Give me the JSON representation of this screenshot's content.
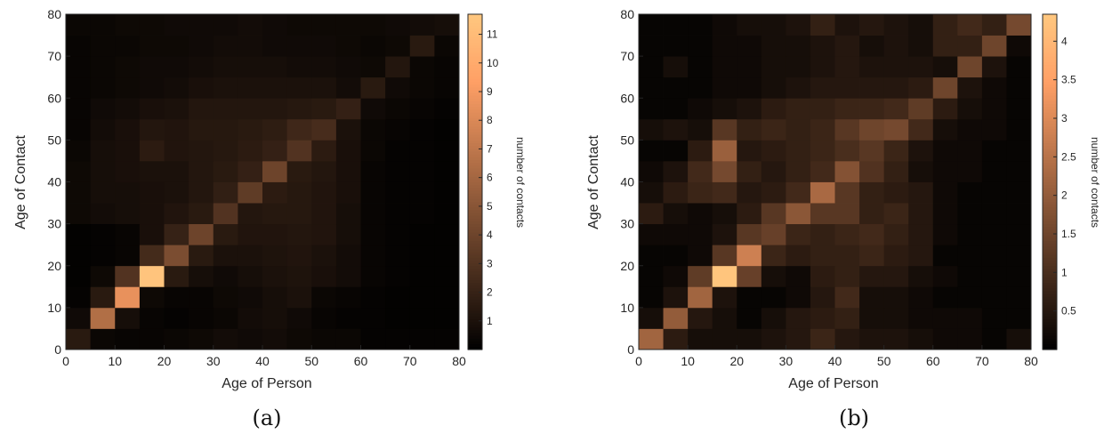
{
  "chart_data": [
    {
      "type": "heatmap",
      "panel_label": "(a)",
      "xlabel": "Age of Person",
      "ylabel": "Age of Contact",
      "colorbar_label": "number of contacts",
      "colormap": "copper",
      "xlim": [
        0,
        80
      ],
      "ylim": [
        0,
        80
      ],
      "bin_width": 5,
      "x_ticks": [
        0,
        10,
        20,
        30,
        40,
        50,
        60,
        70,
        80
      ],
      "y_ticks": [
        0,
        10,
        20,
        30,
        40,
        50,
        60,
        70,
        80
      ],
      "clim": [
        0,
        11.7
      ],
      "colorbar_ticks": [
        1,
        2,
        3,
        4,
        5,
        6,
        7,
        8,
        9,
        10,
        11
      ],
      "grid_note": "rows from age of contact 0-5 (row 0) to 75-80 (row 15); columns from age of person 0-5 to 75-80",
      "z": [
        [
          1.5,
          0.4,
          0.3,
          0.3,
          0.4,
          0.5,
          0.7,
          0.6,
          0.7,
          0.5,
          0.4,
          0.4,
          0.2,
          0.2,
          0.2,
          0.2
        ],
        [
          0.6,
          6.5,
          0.8,
          0.3,
          0.2,
          0.3,
          0.4,
          0.7,
          0.8,
          0.6,
          0.3,
          0.2,
          0.2,
          0.1,
          0.1,
          0.1
        ],
        [
          0.2,
          1.5,
          8.5,
          0.5,
          0.3,
          0.3,
          0.5,
          0.6,
          0.8,
          1.0,
          0.4,
          0.3,
          0.2,
          0.1,
          0.1,
          0.1
        ],
        [
          0.1,
          0.5,
          3.0,
          11.5,
          1.5,
          0.8,
          0.6,
          0.8,
          1.0,
          1.1,
          0.9,
          0.7,
          0.3,
          0.2,
          0.1,
          0.1
        ],
        [
          0.1,
          0.2,
          0.3,
          2.5,
          4.5,
          1.5,
          1.0,
          1.0,
          1.1,
          1.2,
          1.0,
          0.7,
          0.3,
          0.2,
          0.1,
          0.1
        ],
        [
          0.1,
          0.2,
          0.3,
          0.9,
          2.0,
          4.0,
          1.5,
          1.2,
          1.2,
          1.3,
          1.2,
          0.8,
          0.3,
          0.2,
          0.1,
          0.1
        ],
        [
          0.5,
          0.7,
          0.8,
          0.9,
          1.2,
          1.5,
          3.0,
          1.3,
          1.4,
          1.4,
          1.2,
          0.8,
          0.3,
          0.2,
          0.2,
          0.1
        ],
        [
          0.5,
          0.8,
          0.8,
          0.9,
          1.0,
          1.3,
          1.8,
          3.5,
          1.6,
          1.4,
          1.2,
          0.9,
          0.3,
          0.2,
          0.2,
          0.1
        ],
        [
          0.5,
          0.8,
          0.9,
          1.0,
          1.0,
          1.3,
          1.5,
          1.9,
          4.0,
          1.5,
          1.3,
          0.9,
          0.3,
          0.2,
          0.2,
          0.1
        ],
        [
          0.4,
          0.8,
          0.9,
          1.6,
          1.2,
          1.3,
          1.4,
          1.6,
          1.9,
          3.0,
          1.6,
          0.9,
          0.4,
          0.2,
          0.2,
          0.1
        ],
        [
          0.3,
          0.7,
          0.9,
          1.3,
          1.2,
          1.4,
          1.4,
          1.5,
          1.7,
          2.3,
          2.6,
          1.0,
          0.4,
          0.3,
          0.2,
          0.1
        ],
        [
          0.3,
          0.6,
          0.7,
          0.9,
          1.0,
          1.3,
          1.3,
          1.3,
          1.3,
          1.4,
          1.5,
          1.9,
          0.6,
          0.4,
          0.3,
          0.2
        ],
        [
          0.3,
          0.4,
          0.5,
          0.6,
          0.7,
          0.9,
          1.0,
          1.0,
          1.0,
          1.0,
          1.0,
          0.7,
          1.5,
          0.6,
          0.4,
          0.3
        ],
        [
          0.3,
          0.4,
          0.5,
          0.6,
          0.6,
          0.7,
          0.8,
          0.8,
          0.8,
          0.7,
          0.7,
          0.6,
          0.5,
          1.3,
          0.4,
          0.3
        ],
        [
          0.3,
          0.4,
          0.4,
          0.5,
          0.5,
          0.6,
          0.7,
          0.7,
          0.6,
          0.6,
          0.6,
          0.5,
          0.4,
          0.5,
          1.5,
          0.4
        ],
        [
          0.4,
          0.4,
          0.5,
          0.5,
          0.6,
          0.6,
          0.6,
          0.7,
          0.6,
          0.5,
          0.5,
          0.5,
          0.5,
          0.6,
          0.7,
          0.8
        ]
      ]
    },
    {
      "type": "heatmap",
      "panel_label": "(b)",
      "xlabel": "Age of Person",
      "ylabel": "Age of Contact",
      "colorbar_label": "number of contacts",
      "colormap": "copper",
      "xlim": [
        0,
        80
      ],
      "ylim": [
        0,
        80
      ],
      "bin_width": 5,
      "x_ticks": [
        0,
        10,
        20,
        30,
        40,
        50,
        60,
        70,
        80
      ],
      "y_ticks": [
        0,
        10,
        20,
        30,
        40,
        50,
        60,
        70,
        80
      ],
      "clim": [
        0,
        4.35
      ],
      "colorbar_ticks": [
        0.5,
        1,
        1.5,
        2,
        2.5,
        3,
        3.5,
        4
      ],
      "grid_note": "rows from age of contact 0-5 (row 0) to 75-80 (row 15); columns from age of person 0-5 to 75-80",
      "z": [
        [
          2.2,
          0.6,
          0.3,
          0.3,
          0.3,
          0.4,
          0.5,
          0.8,
          0.5,
          0.4,
          0.4,
          0.3,
          0.2,
          0.2,
          0.1,
          0.3
        ],
        [
          0.3,
          2.0,
          0.5,
          0.3,
          0.1,
          0.3,
          0.5,
          0.6,
          0.7,
          0.3,
          0.3,
          0.2,
          0.2,
          0.2,
          0.1,
          0.1
        ],
        [
          0.1,
          0.4,
          2.2,
          0.4,
          0.1,
          0.1,
          0.2,
          0.5,
          0.9,
          0.3,
          0.3,
          0.2,
          0.1,
          0.1,
          0.1,
          0.1
        ],
        [
          0.1,
          0.2,
          1.3,
          4.3,
          1.4,
          0.3,
          0.2,
          0.6,
          0.7,
          0.5,
          0.5,
          0.3,
          0.2,
          0.1,
          0.1,
          0.1
        ],
        [
          0.1,
          0.1,
          0.2,
          1.2,
          2.8,
          0.8,
          0.6,
          0.7,
          0.7,
          0.8,
          0.6,
          0.5,
          0.1,
          0.1,
          0.1,
          0.1
        ],
        [
          0.2,
          0.2,
          0.2,
          0.4,
          1.2,
          1.4,
          0.8,
          0.7,
          0.8,
          0.9,
          0.7,
          0.5,
          0.2,
          0.1,
          0.1,
          0.1
        ],
        [
          0.6,
          0.3,
          0.2,
          0.3,
          0.6,
          1.2,
          1.9,
          1.2,
          1.2,
          0.7,
          0.8,
          0.5,
          0.2,
          0.1,
          0.1,
          0.1
        ],
        [
          0.3,
          0.6,
          0.8,
          0.9,
          0.5,
          0.6,
          0.9,
          2.3,
          1.2,
          0.7,
          0.6,
          0.5,
          0.2,
          0.1,
          0.1,
          0.1
        ],
        [
          0.2,
          0.4,
          0.9,
          1.6,
          0.7,
          0.5,
          0.7,
          0.9,
          1.8,
          1.1,
          0.7,
          0.3,
          0.2,
          0.2,
          0.1,
          0.1
        ],
        [
          0.1,
          0.1,
          0.6,
          2.1,
          0.5,
          0.6,
          0.7,
          0.8,
          1.0,
          1.2,
          0.8,
          0.4,
          0.2,
          0.2,
          0.1,
          0.1
        ],
        [
          0.3,
          0.4,
          0.3,
          1.2,
          0.7,
          0.8,
          0.7,
          0.8,
          1.2,
          1.5,
          1.6,
          0.9,
          0.3,
          0.2,
          0.2,
          0.1
        ],
        [
          0.1,
          0.1,
          0.2,
          0.3,
          0.4,
          0.6,
          0.7,
          0.7,
          0.8,
          0.8,
          0.9,
          1.3,
          0.6,
          0.3,
          0.2,
          0.1
        ],
        [
          0.1,
          0.1,
          0.1,
          0.2,
          0.2,
          0.3,
          0.4,
          0.5,
          0.5,
          0.5,
          0.5,
          0.6,
          1.5,
          0.4,
          0.2,
          0.1
        ],
        [
          0.1,
          0.3,
          0.1,
          0.2,
          0.2,
          0.3,
          0.3,
          0.4,
          0.5,
          0.4,
          0.4,
          0.4,
          0.3,
          1.5,
          0.4,
          0.1
        ],
        [
          0.1,
          0.1,
          0.1,
          0.2,
          0.2,
          0.3,
          0.3,
          0.4,
          0.5,
          0.3,
          0.4,
          0.3,
          0.7,
          0.7,
          1.5,
          0.2
        ],
        [
          0.1,
          0.1,
          0.1,
          0.2,
          0.3,
          0.3,
          0.4,
          0.7,
          0.4,
          0.5,
          0.4,
          0.3,
          0.7,
          0.9,
          0.7,
          1.6
        ]
      ]
    }
  ]
}
